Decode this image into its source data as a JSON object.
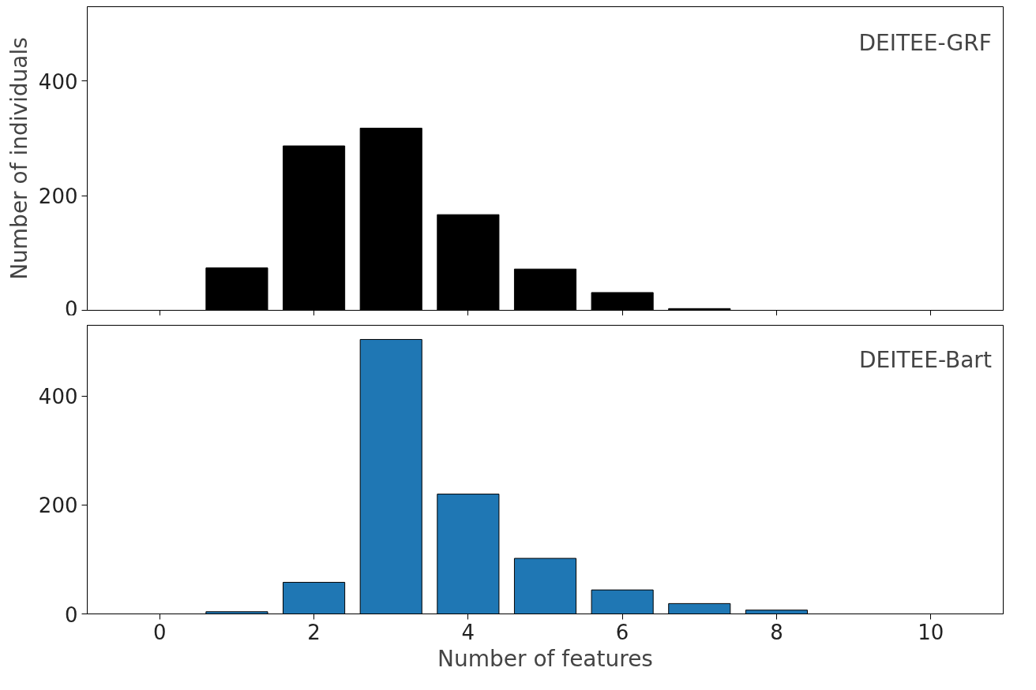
{
  "chart_data": [
    {
      "type": "bar",
      "x": [
        0,
        1,
        2,
        3,
        4,
        5,
        6,
        7,
        8,
        9,
        10
      ],
      "values": [
        0,
        74,
        287,
        318,
        167,
        72,
        31,
        3,
        0,
        0,
        0
      ],
      "color": "#000000",
      "xlim": [
        -0.94,
        10.94
      ],
      "xticks": [
        {
          "value": 0,
          "label": null
        },
        {
          "value": 2,
          "label": null
        },
        {
          "value": 4,
          "label": null
        },
        {
          "value": 6,
          "label": null
        },
        {
          "value": 8,
          "label": null
        },
        {
          "value": 10,
          "label": null
        }
      ],
      "ylim": [
        0,
        530
      ],
      "yticks": [
        0,
        200,
        400
      ],
      "ylabel": "Number of individuals",
      "annotations": [
        "DEITEE-GRF"
      ],
      "tick_labels": "y",
      "grid": false
    },
    {
      "type": "bar",
      "x": [
        0,
        1,
        2,
        3,
        4,
        5,
        6,
        7,
        8,
        9,
        10
      ],
      "values": [
        0,
        4,
        58,
        504,
        220,
        102,
        44,
        19,
        7,
        0,
        0
      ],
      "color": "#1f77b4",
      "xlim": [
        -0.94,
        10.94
      ],
      "xticks": [
        0,
        2,
        4,
        6,
        8,
        10
      ],
      "ylim": [
        0,
        530
      ],
      "yticks": [
        0,
        200,
        400
      ],
      "xlabel": "Number of features",
      "annotations": [
        "DEITEE-Bart"
      ],
      "grid": false
    }
  ]
}
